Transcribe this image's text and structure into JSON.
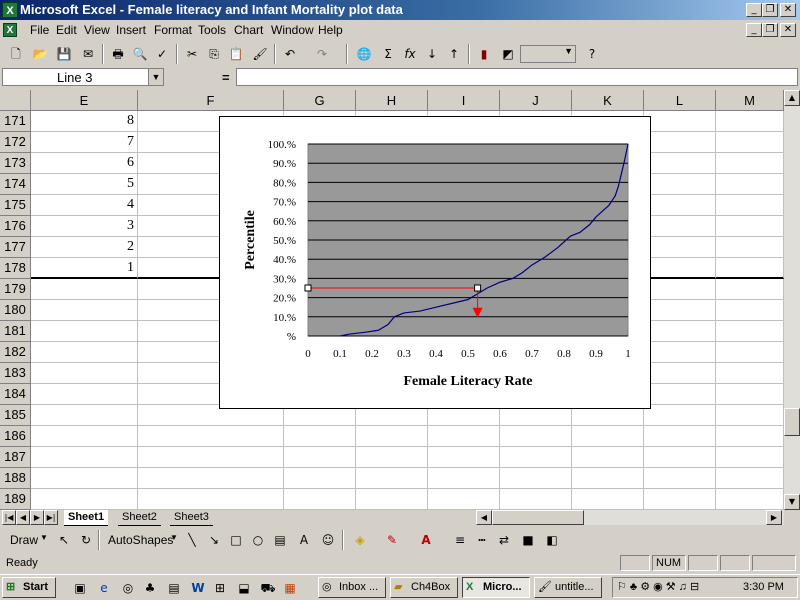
{
  "window": {
    "title": "Microsoft Excel - Female literacy and Infant Mortality plot data"
  },
  "menu": [
    "File",
    "Edit",
    "View",
    "Insert",
    "Format",
    "Tools",
    "Chart",
    "Window",
    "Help"
  ],
  "formula": {
    "name_box": "Line 3",
    "equals": "="
  },
  "columns": [
    "E",
    "F",
    "G",
    "H",
    "I",
    "J",
    "K",
    "L",
    "M"
  ],
  "rows": [
    {
      "num": "171",
      "e": "8"
    },
    {
      "num": "172",
      "e": "7"
    },
    {
      "num": "173",
      "e": "6"
    },
    {
      "num": "174",
      "e": "5"
    },
    {
      "num": "175",
      "e": "4"
    },
    {
      "num": "176",
      "e": "3"
    },
    {
      "num": "177",
      "e": "2"
    },
    {
      "num": "178",
      "e": "1"
    },
    {
      "num": "179",
      "e": ""
    },
    {
      "num": "180",
      "e": ""
    },
    {
      "num": "181",
      "e": ""
    },
    {
      "num": "182",
      "e": ""
    },
    {
      "num": "183",
      "e": ""
    },
    {
      "num": "184",
      "e": ""
    },
    {
      "num": "185",
      "e": ""
    },
    {
      "num": "186",
      "e": ""
    },
    {
      "num": "187",
      "e": ""
    },
    {
      "num": "188",
      "e": ""
    },
    {
      "num": "189",
      "e": ""
    }
  ],
  "sheets": [
    "Sheet1",
    "Sheet2",
    "Sheet3"
  ],
  "draw_toolbar": {
    "draw": "Draw",
    "autoshapes": "AutoShapes"
  },
  "status": {
    "text": "Ready",
    "num": "NUM"
  },
  "taskbar": {
    "start": "Start",
    "items": [
      "Inbox ...",
      "Ch4Box",
      "Micro...",
      "untitle..."
    ],
    "clock": "3:30 PM"
  },
  "colors": {
    "plot_area": "#999999",
    "series": "#000080",
    "annotation": "#ff0000",
    "titlebar": "#0a246a"
  },
  "chart_data": {
    "type": "line",
    "xlabel": "Female Literacy Rate",
    "ylabel": "Percentile",
    "xticks": [
      "0",
      "0.1",
      "0.2",
      "0.3",
      "0.4",
      "0.5",
      "0.6",
      "0.7",
      "0.8",
      "0.9",
      "1"
    ],
    "yticks": [
      "%",
      "10.%",
      "20.%",
      "30.%",
      "40.%",
      "50.%",
      "60.%",
      "70.%",
      "80.%",
      "90.%",
      "100.%"
    ],
    "xlim": [
      0,
      1
    ],
    "ylim": [
      0,
      100
    ],
    "grid": true,
    "series": [
      {
        "x": [
          0.1,
          0.13,
          0.18,
          0.22,
          0.25,
          0.27,
          0.3,
          0.35,
          0.4,
          0.45,
          0.5,
          0.53,
          0.56,
          0.6,
          0.64,
          0.67,
          0.7,
          0.74,
          0.78,
          0.82,
          0.85,
          0.88,
          0.9,
          0.92,
          0.94,
          0.96,
          0.97,
          0.98,
          0.99,
          1.0
        ],
        "y": [
          0,
          1,
          2,
          3,
          6,
          10,
          12,
          13,
          15,
          17,
          19,
          22,
          25,
          28,
          30,
          33,
          37,
          41,
          46,
          52,
          54,
          58,
          62,
          65,
          68,
          73,
          78,
          85,
          92,
          100
        ]
      }
    ],
    "annotation": {
      "x": 0.53,
      "y": 25,
      "arrow_to_y": 10
    }
  }
}
